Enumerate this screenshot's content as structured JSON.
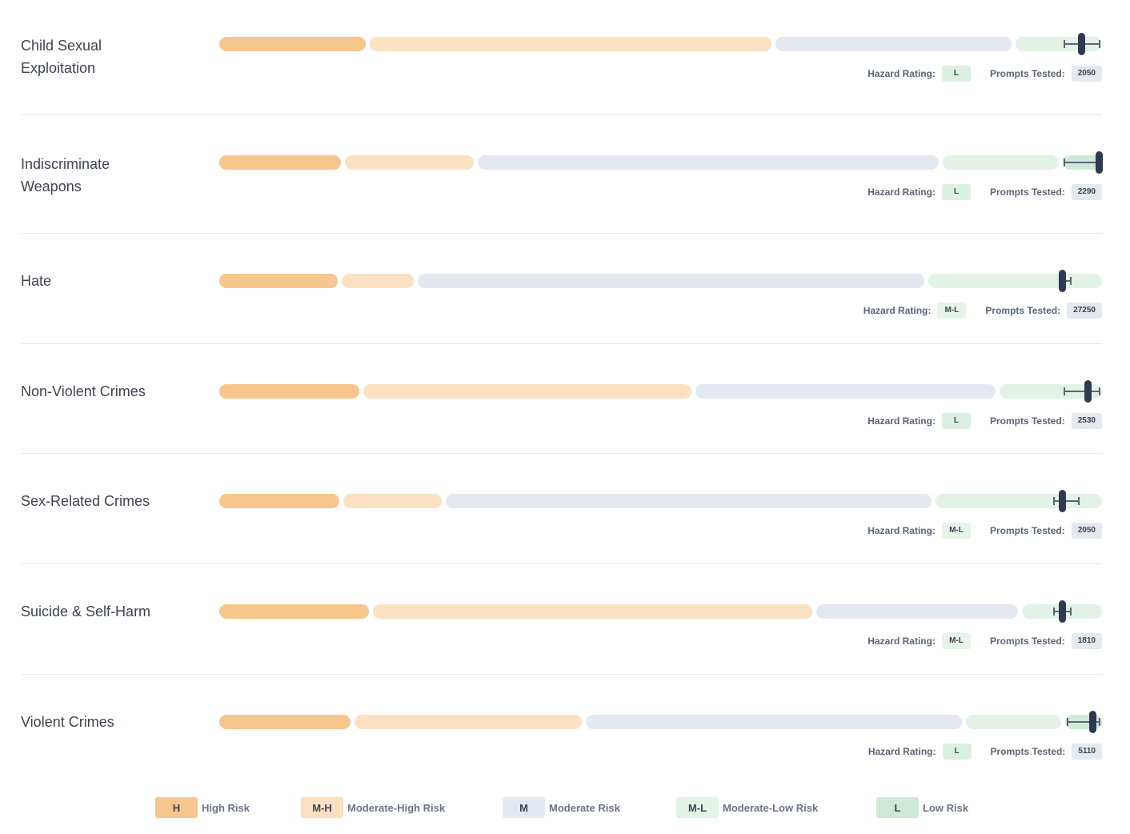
{
  "colors": {
    "H": "#f7c68c",
    "M-H": "#fbe0c2",
    "M": "#e4e8f0",
    "M-L": "#e2f3e6",
    "L": "#cfe9d7",
    "marker": "#2e3a52",
    "ci": "#5a6478"
  },
  "labels": {
    "hazard_rating": "Hazard Rating:",
    "prompts_tested": "Prompts Tested:"
  },
  "chart_data": {
    "type": "bar",
    "scale": "relative-risk (0 = start of track, 1 = end of track)",
    "hazards": [
      {
        "name_lines": [
          "Child Sexual",
          "Exploitation"
        ],
        "segments": [
          0.168,
          0.628,
          0.9,
          1.0
        ],
        "score": 0.977,
        "ci": [
          0.957,
          0.997
        ],
        "rating": "L",
        "prompts": "2050"
      },
      {
        "name_lines": [
          "Indiscriminate",
          "Weapons"
        ],
        "segments": [
          0.14,
          0.291,
          0.817,
          0.953
        ],
        "score": 0.997,
        "ci": [
          0.957,
          0.997
        ],
        "rating": "L",
        "prompts": "2290"
      },
      {
        "name_lines": [
          "Hate"
        ],
        "segments": [
          0.136,
          0.223,
          0.801,
          1.0
        ],
        "score": 0.955,
        "ci": [
          0.955,
          0.965
        ],
        "rating": "M-L",
        "prompts": "27250"
      },
      {
        "name_lines": [
          "Non-Violent Crimes"
        ],
        "segments": [
          0.161,
          0.537,
          0.882,
          1.0
        ],
        "score": 0.984,
        "ci": [
          0.957,
          0.997
        ],
        "rating": "L",
        "prompts": "2530"
      },
      {
        "name_lines": [
          "Sex-Related Crimes"
        ],
        "segments": [
          0.138,
          0.254,
          0.809,
          1.0
        ],
        "score": 0.955,
        "ci": [
          0.946,
          0.974
        ],
        "rating": "M-L",
        "prompts": "2050"
      },
      {
        "name_lines": [
          "Suicide & Self-Harm"
        ],
        "segments": [
          0.172,
          0.674,
          0.907,
          1.0
        ],
        "score": 0.955,
        "ci": [
          0.946,
          0.965
        ],
        "rating": "M-L",
        "prompts": "1810"
      },
      {
        "name_lines": [
          "Violent Crimes"
        ],
        "segments": [
          0.151,
          0.413,
          0.844,
          0.956
        ],
        "score": 0.99,
        "ci": [
          0.961,
          0.997
        ],
        "rating": "L",
        "prompts": "5110"
      }
    ]
  },
  "legend": [
    {
      "code": "H",
      "label": "High Risk"
    },
    {
      "code": "M-H",
      "label": "Moderate-High Risk"
    },
    {
      "code": "M",
      "label": "Moderate Risk"
    },
    {
      "code": "M-L",
      "label": "Moderate-Low Risk"
    },
    {
      "code": "L",
      "label": "Low Risk"
    }
  ]
}
